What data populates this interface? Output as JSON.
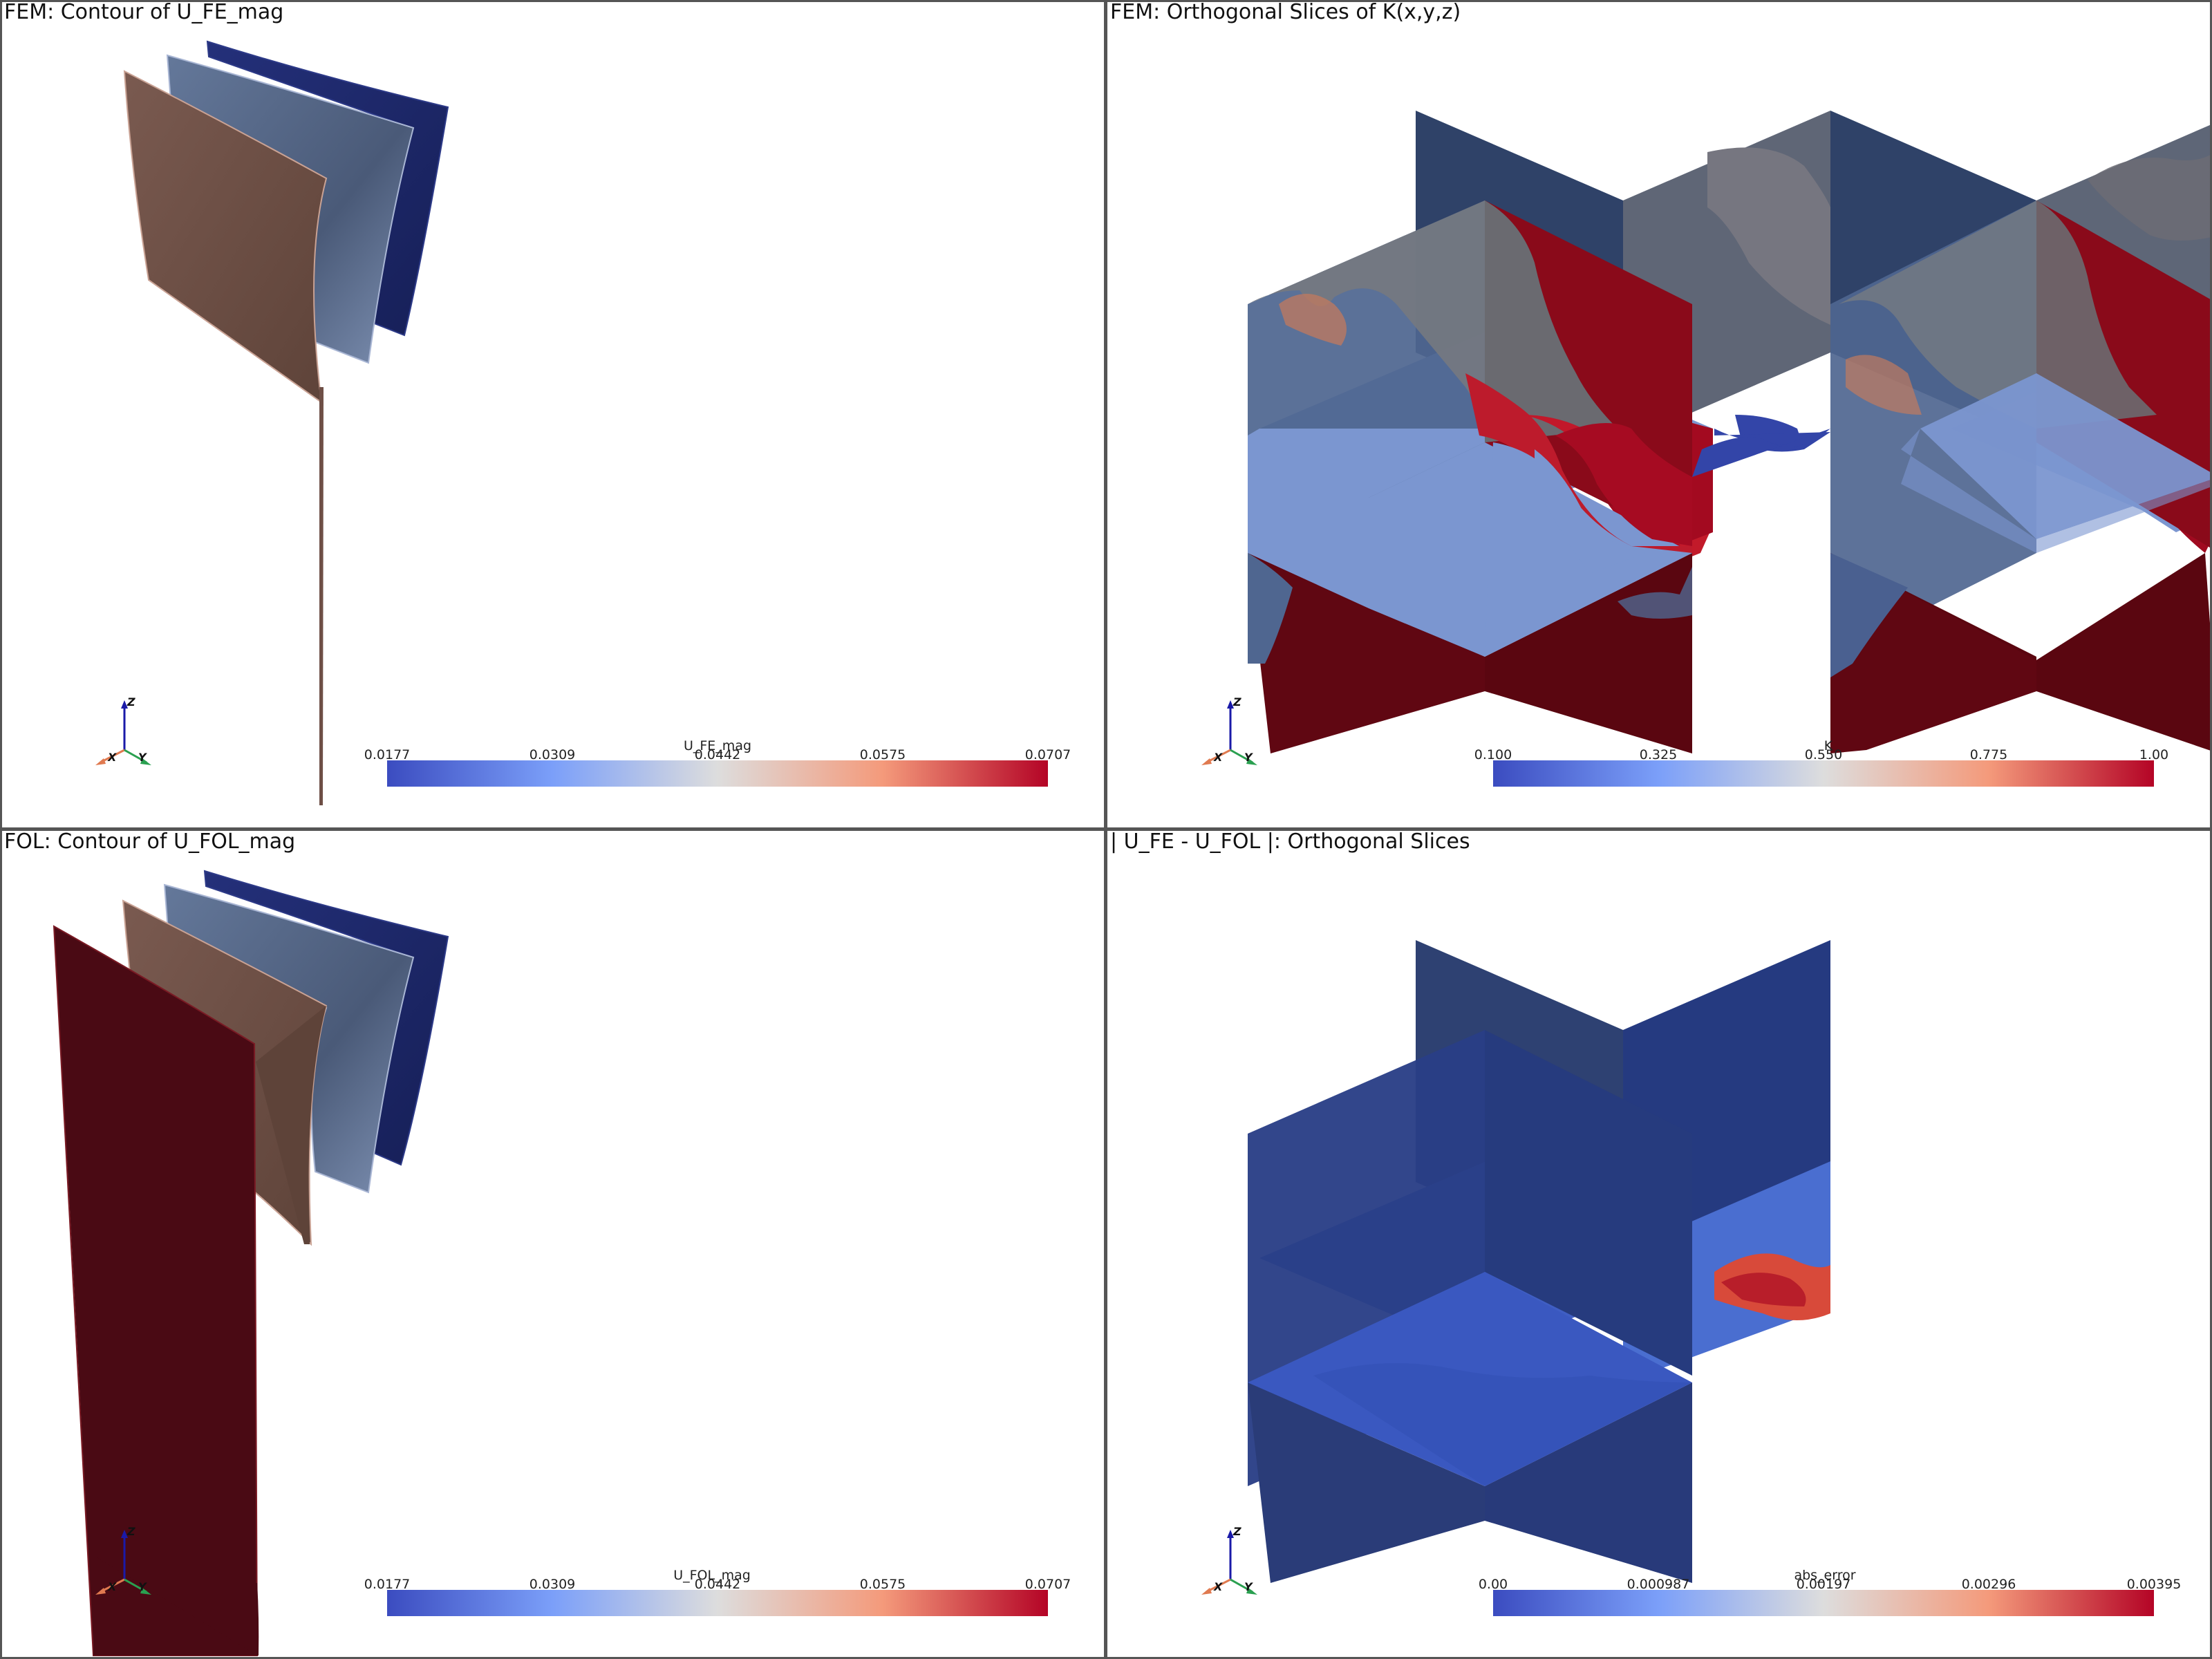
{
  "viewports": [
    {
      "title": "FEM: Contour of U_FE_mag",
      "colorbar": {
        "title": "U_FE_mag",
        "ticks": [
          "0.0177",
          "0.0309",
          "0.0442",
          "0.0575",
          "0.0707"
        ]
      },
      "axes": {
        "x": "X",
        "y": "Y",
        "z": "Z"
      }
    },
    {
      "title": "FEM: Orthogonal Slices of K(x,y,z)",
      "colorbar": {
        "title": "K",
        "ticks": [
          "0.100",
          "0.325",
          "0.550",
          "0.775",
          "1.00"
        ]
      },
      "axes": {
        "x": "X",
        "y": "Y",
        "z": "Z"
      }
    },
    {
      "title": "FOL: Contour of U_FOL_mag",
      "colorbar": {
        "title": "U_FOL_mag",
        "ticks": [
          "0.0177",
          "0.0309",
          "0.0442",
          "0.0575",
          "0.0707"
        ]
      },
      "axes": {
        "x": "X",
        "y": "Y",
        "z": "Z"
      }
    },
    {
      "title": "| U_FE - U_FOL |: Orthogonal Slices",
      "colorbar": {
        "title": "abs_error",
        "ticks": [
          "0.00",
          "0.000987",
          "0.00197",
          "0.00296",
          "0.00395"
        ]
      },
      "axes": {
        "x": "X",
        "y": "Y",
        "z": "Z"
      }
    }
  ],
  "colors": {
    "cool_warm_low": "#3b4cc0",
    "cool_warm_mid": "#dddddd",
    "cool_warm_high": "#b40426",
    "contour_dark_blue": "#1f2a6b",
    "contour_slate": "#5a6d8c",
    "contour_tan": "#6e4f46",
    "contour_dark_red": "#4a0a14"
  }
}
